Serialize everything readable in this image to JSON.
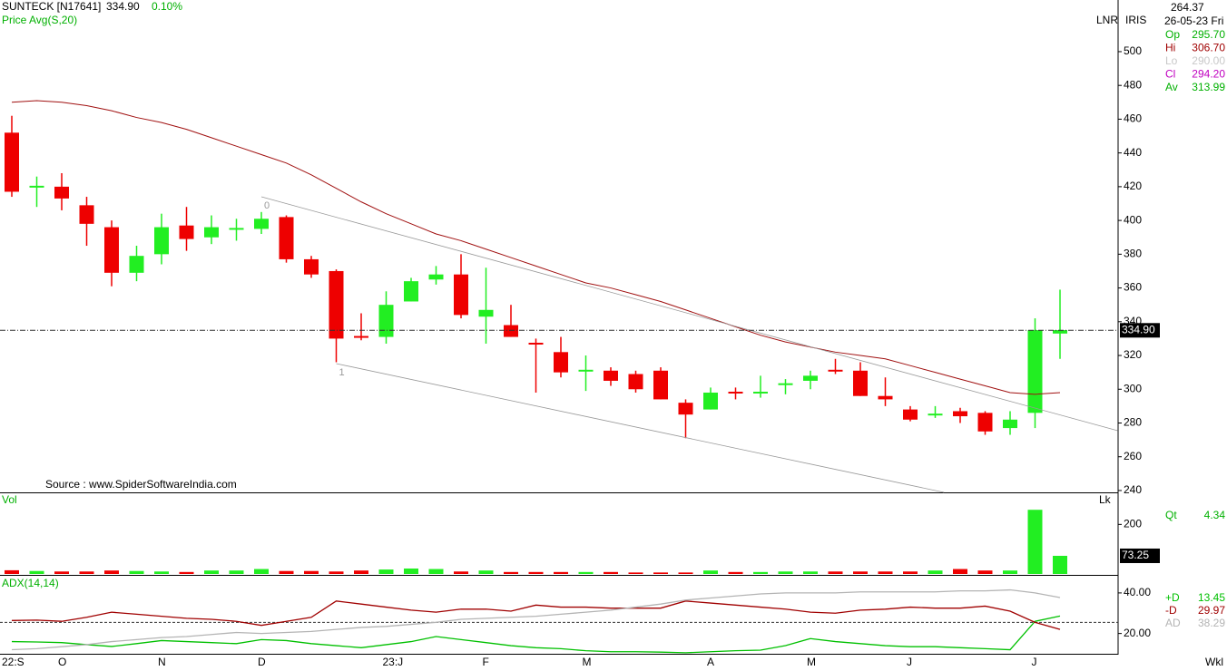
{
  "header": {
    "symbol": "SUNTECK [N17641]",
    "change": "0.10%",
    "axis_mode": "LNR",
    "axis_mode2": "IRIS",
    "source": "Source : www.SpiderSoftwareIndia.com",
    "period": "Wkl"
  },
  "info": {
    "top": "264.37",
    "date": "26-05-23 Fri",
    "fields": [
      {
        "label": "Op",
        "value": "295.70",
        "color": "#00b000"
      },
      {
        "label": "Hi",
        "value": "306.70",
        "color": "#a00000"
      },
      {
        "label": "Lo",
        "value": "290.00",
        "color": "#c8c8c8"
      },
      {
        "label": "Cl",
        "value": "294.20",
        "color": "#c000c0"
      },
      {
        "label": "Av",
        "value": "313.99",
        "color": "#00b000"
      }
    ]
  },
  "chart_data": [
    {
      "type": "candlestick",
      "up_color": "#22ee22",
      "down_color": "#ee0000",
      "categories": [
        "22:S",
        null,
        "O",
        null,
        null,
        null,
        "N",
        null,
        null,
        null,
        "D",
        null,
        null,
        null,
        null,
        "23:J",
        null,
        null,
        null,
        "F",
        null,
        null,
        null,
        "M",
        null,
        null,
        null,
        null,
        "A",
        null,
        null,
        null,
        "M",
        null,
        null,
        null,
        "J",
        null,
        null,
        null,
        null,
        "J",
        null
      ],
      "open": [
        452,
        420,
        420,
        409,
        396,
        369,
        380,
        397,
        390,
        394,
        395,
        402,
        377,
        370,
        331,
        331,
        352,
        365,
        368,
        343,
        338,
        327,
        322,
        310,
        311,
        309,
        311,
        292,
        288,
        298,
        297,
        302,
        305,
        311,
        311,
        296,
        288,
        284,
        287,
        286,
        277,
        286,
        333
      ],
      "high": [
        462,
        426,
        428,
        414,
        400,
        385,
        404,
        408,
        403,
        401,
        405,
        403,
        379,
        371,
        345,
        358,
        366,
        373,
        380,
        372,
        350,
        330,
        331,
        320,
        313,
        311,
        313,
        294,
        301,
        301,
        308,
        306,
        311,
        318,
        316,
        307,
        290,
        290,
        289,
        287,
        287,
        342,
        359
      ],
      "low": [
        414,
        408,
        406,
        385,
        361,
        364,
        374,
        382,
        386,
        388,
        392,
        375,
        366,
        316,
        329,
        327,
        352,
        362,
        342,
        327,
        331,
        298,
        307,
        299,
        302,
        298,
        294,
        271,
        288,
        294,
        295,
        297,
        300,
        309,
        296,
        290,
        281,
        283,
        280,
        273,
        273,
        277,
        318
      ],
      "close": [
        417,
        420,
        413,
        398,
        369,
        379,
        396,
        389,
        396,
        395,
        401,
        377,
        368,
        330,
        330,
        350,
        364,
        368,
        344,
        347,
        331,
        326,
        310,
        311,
        305,
        300,
        294,
        285,
        298,
        297,
        298,
        303,
        308,
        310,
        296,
        294,
        282,
        285,
        284,
        275,
        282,
        335,
        335
      ],
      "series": [
        {
          "name": "Price Avg(S,20)",
          "color": "#a01010",
          "values": [
            470,
            471,
            470,
            468,
            465,
            461,
            458,
            454,
            449,
            444,
            439,
            434,
            427,
            419,
            411,
            404,
            398,
            392,
            388,
            383,
            378,
            373,
            368,
            363,
            360,
            356,
            352,
            347,
            342,
            337,
            332,
            328,
            325,
            322,
            320,
            318,
            314,
            310,
            306,
            302,
            298,
            297,
            298
          ]
        }
      ],
      "last": {
        "value": 334.9,
        "label": "334.90"
      },
      "trendlines": [
        {
          "label": "0",
          "points": [
            [
              10,
              414
            ],
            [
              44.3,
              275.5
            ]
          ]
        },
        {
          "label": "1",
          "points": [
            [
              13,
              315.2
            ],
            [
              37.35,
              238.9
            ]
          ]
        }
      ],
      "ylim": [
        238.9,
        530.6
      ],
      "yticks": [
        240,
        260,
        280,
        300,
        320,
        340,
        360,
        380,
        400,
        420,
        440,
        460,
        480,
        500
      ]
    },
    {
      "type": "bar",
      "label": "Vol",
      "unit": "Lk",
      "values": [
        15,
        12,
        10,
        10,
        14,
        12,
        10,
        8,
        14,
        14,
        20,
        12,
        12,
        10,
        14,
        18,
        22,
        20,
        10,
        14,
        8,
        8,
        8,
        8,
        8,
        6,
        6,
        6,
        14,
        8,
        8,
        10,
        10,
        10,
        10,
        10,
        10,
        14,
        20,
        14,
        14,
        259,
        73.25
      ],
      "last_label": "73.25",
      "side": {
        "label": "Qt",
        "value": "4.34"
      },
      "ylim": [
        0,
        322
      ],
      "yticks": [
        200
      ]
    },
    {
      "type": "line",
      "label": "ADX(14,14)",
      "series": [
        {
          "name": "+D",
          "legend_value": "13.45",
          "color": "#00c000",
          "values": [
            16,
            15.8,
            15.5,
            14.5,
            13.6,
            15,
            16.5,
            16,
            15.5,
            15,
            17,
            16.5,
            15,
            14,
            13,
            14.5,
            16,
            18.5,
            17,
            15.5,
            14,
            13,
            12.5,
            11.5,
            11,
            11,
            10.8,
            10.5,
            11,
            11.5,
            11.8,
            14,
            17.5,
            16,
            15,
            14,
            13.5,
            13.5,
            13,
            12.5,
            12,
            26,
            28.6
          ]
        },
        {
          "name": "-D",
          "legend_value": "29.97",
          "color": "#a00000",
          "values": [
            26.4,
            26.6,
            26,
            28,
            30.5,
            29.5,
            28.5,
            27.5,
            27,
            26,
            24,
            26,
            28,
            36,
            34.5,
            33,
            31.5,
            30.5,
            32,
            32,
            31,
            34,
            33,
            33,
            32.5,
            32.5,
            32.5,
            36,
            35,
            34,
            33,
            32,
            30.5,
            30,
            31.5,
            32,
            33,
            32.5,
            32.5,
            33.5,
            31,
            25.5,
            22
          ]
        },
        {
          "name": "AD",
          "legend_value": "38.29",
          "color": "#b4b4b4",
          "values": [
            12,
            12.5,
            13.5,
            14.5,
            16,
            17,
            18,
            18.5,
            19.5,
            20.5,
            20,
            20.5,
            21,
            22,
            23,
            23.5,
            24.5,
            25.5,
            27,
            27.5,
            28,
            28.5,
            29.5,
            30.5,
            31.5,
            33,
            34.5,
            36.5,
            37.5,
            38.5,
            39.5,
            40,
            40,
            40,
            40.5,
            40.5,
            40.5,
            40.5,
            41,
            41,
            41.5,
            40,
            37.7
          ]
        }
      ],
      "hline": 25.5,
      "ylim": [
        10,
        48
      ],
      "yticks": [
        {
          "value": 40,
          "label": "40.00"
        },
        {
          "value": 20,
          "label": "20.00"
        }
      ]
    }
  ]
}
